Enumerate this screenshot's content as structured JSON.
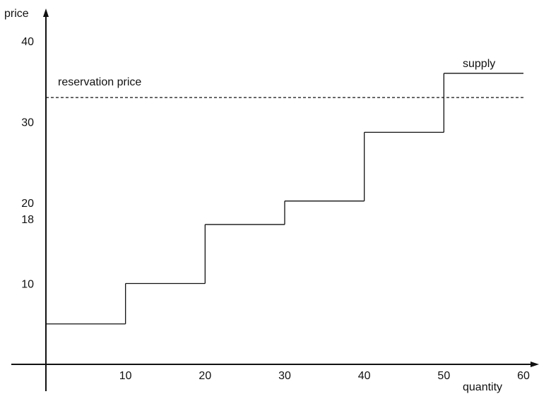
{
  "chart_data": {
    "type": "line",
    "title": "",
    "xlabel": "quantity",
    "ylabel": "price",
    "xlim": [
      0,
      60
    ],
    "ylim": [
      0,
      40
    ],
    "x_ticks": [
      10,
      20,
      30,
      40,
      50,
      60
    ],
    "y_ticks": [
      10,
      18,
      20,
      30,
      40
    ],
    "grid": false,
    "series": [
      {
        "name": "supply",
        "step": true,
        "points": [
          [
            0,
            5
          ],
          [
            10,
            5
          ],
          [
            10,
            10
          ],
          [
            20,
            10
          ],
          [
            20,
            17.3
          ],
          [
            30,
            17.3
          ],
          [
            30,
            20.2
          ],
          [
            40,
            20.2
          ],
          [
            40,
            28.7
          ],
          [
            50,
            28.7
          ],
          [
            50,
            36
          ],
          [
            60,
            36
          ]
        ]
      }
    ],
    "reference_lines": [
      {
        "label": "reservation price",
        "y": 33,
        "style": "dashed"
      }
    ]
  }
}
